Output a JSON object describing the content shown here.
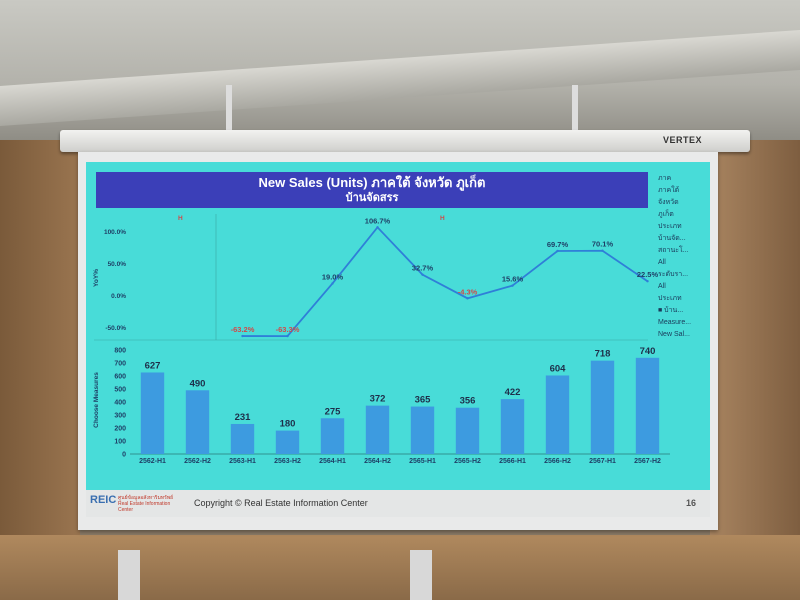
{
  "slide": {
    "title_line1": "New Sales (Units) ภาคใต้ จังหวัด ภูเก็ต",
    "title_line2": "บ้านจัดสรร",
    "marker_h1": "H",
    "marker_h2": "H",
    "yoy_axis_label": "YoY%",
    "units_axis_label": "Choose Measures",
    "copyright": "Copyright © Real Estate Information Center",
    "page_number": "16",
    "logo_text": "REIC",
    "logo_subtext": "ศูนย์ข้อมูลอสังหาริมทรัพย์ Real Estate Information Center",
    "projector_brand": "VERTEX"
  },
  "side_panel": [
    "ภาค",
    "ภาคใต้",
    "จังหวัด",
    "ภูเก็ต",
    "ประเภท",
    "บ้านจัด...",
    "สถานะโ...",
    "All",
    "ระดับรา...",
    "All",
    "ประเภท",
    "■ บ้าน...",
    "Measure...",
    "New Sal..."
  ],
  "chart_data": [
    {
      "type": "line",
      "ylabel": "YoY%",
      "yticks": [
        "100.0%",
        "50.0%",
        "0.0%",
        "-50.0%"
      ],
      "ylim": [
        -60,
        115
      ],
      "categories": [
        "2563-H1",
        "2563-H2",
        "2564-H1",
        "2564-H2",
        "2565-H1",
        "2565-H2",
        "2566-H1",
        "2566-H2",
        "2567-H1",
        "2567-H2"
      ],
      "values": [
        -63.2,
        -63.3,
        19.0,
        106.7,
        32.7,
        -4.3,
        15.6,
        69.7,
        70.1,
        22.5
      ],
      "data_labels": [
        "-63.2%",
        "-63.3%",
        "19.0%",
        "106.7%",
        "32.7%",
        "-4.3%",
        "15.6%",
        "69.7%",
        "70.1%",
        "22.5%"
      ],
      "line_color": "#2f7fd8",
      "negative_label_color": "#d04a4a"
    },
    {
      "type": "bar",
      "ylabel": "Choose Measures",
      "yticks": [
        "800",
        "700",
        "600",
        "500",
        "400",
        "300",
        "200",
        "100",
        "0"
      ],
      "ylim": [
        0,
        800
      ],
      "categories": [
        "2562-H1",
        "2562-H2",
        "2563-H1",
        "2563-H2",
        "2564-H1",
        "2564-H2",
        "2565-H1",
        "2565-H2",
        "2566-H1",
        "2566-H2",
        "2567-H1",
        "2567-H2"
      ],
      "values": [
        627,
        490,
        231,
        180,
        275,
        372,
        365,
        356,
        422,
        604,
        718,
        740
      ],
      "bar_color": "#3d9be0"
    }
  ]
}
